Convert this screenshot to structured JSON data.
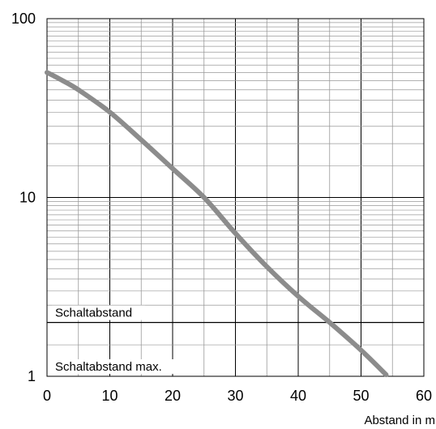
{
  "chart_data": {
    "type": "line",
    "title": "",
    "xlabel": "Abstand in m",
    "ylabel": "",
    "xlim": [
      0,
      60
    ],
    "ylim": [
      1,
      100
    ],
    "yscale": "log",
    "grid": true,
    "x_ticks": [
      "0",
      "10",
      "20",
      "30",
      "40",
      "50",
      "60"
    ],
    "y_ticks": [
      "1",
      "10",
      "100"
    ],
    "series": [
      {
        "color": "#8c8c8c",
        "x": [
          0,
          2,
          5,
          10,
          15,
          20,
          25,
          30,
          35,
          40,
          45,
          50,
          54
        ],
        "y": [
          50,
          46,
          40,
          30,
          21,
          14.5,
          10,
          6.3,
          4.1,
          2.8,
          2.0,
          1.4,
          1.02
        ]
      }
    ],
    "annotations": [
      {
        "label": "Schaltabstand",
        "y": 2
      },
      {
        "label": "Schaltabstand max.",
        "y": 1
      }
    ]
  }
}
